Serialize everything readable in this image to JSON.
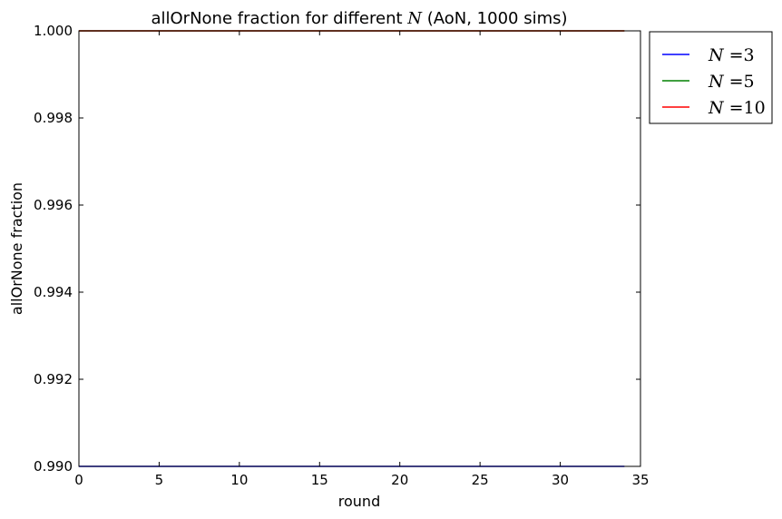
{
  "chart_data": {
    "type": "line",
    "title_prefix": "allOrNone fraction for different ",
    "title_math": "N",
    "title_suffix": " (AoN, 1000 sims)",
    "xlabel": "round",
    "ylabel": "allOrNone fraction",
    "xlim": [
      0,
      35
    ],
    "ylim": [
      0.99,
      1.0
    ],
    "xticks": [
      "0",
      "5",
      "10",
      "15",
      "20",
      "25",
      "30",
      "35"
    ],
    "yticks": [
      "0.990",
      "0.992",
      "0.994",
      "0.996",
      "0.998",
      "1.000"
    ],
    "grid": false,
    "legend_position": "outside-right-top",
    "x": [
      0,
      34
    ],
    "series": [
      {
        "name": "N =3",
        "legend_symbol": "N",
        "legend_value": "=3",
        "color": "#0000ff",
        "values": [
          0.99,
          0.99
        ]
      },
      {
        "name": "N =5",
        "legend_symbol": "N",
        "legend_value": "=5",
        "color": "#008000",
        "values": [
          1.0,
          1.0
        ]
      },
      {
        "name": "N =10",
        "legend_symbol": "N",
        "legend_value": "=10",
        "color": "#ff0000",
        "values": [
          1.0,
          1.0
        ]
      }
    ]
  }
}
